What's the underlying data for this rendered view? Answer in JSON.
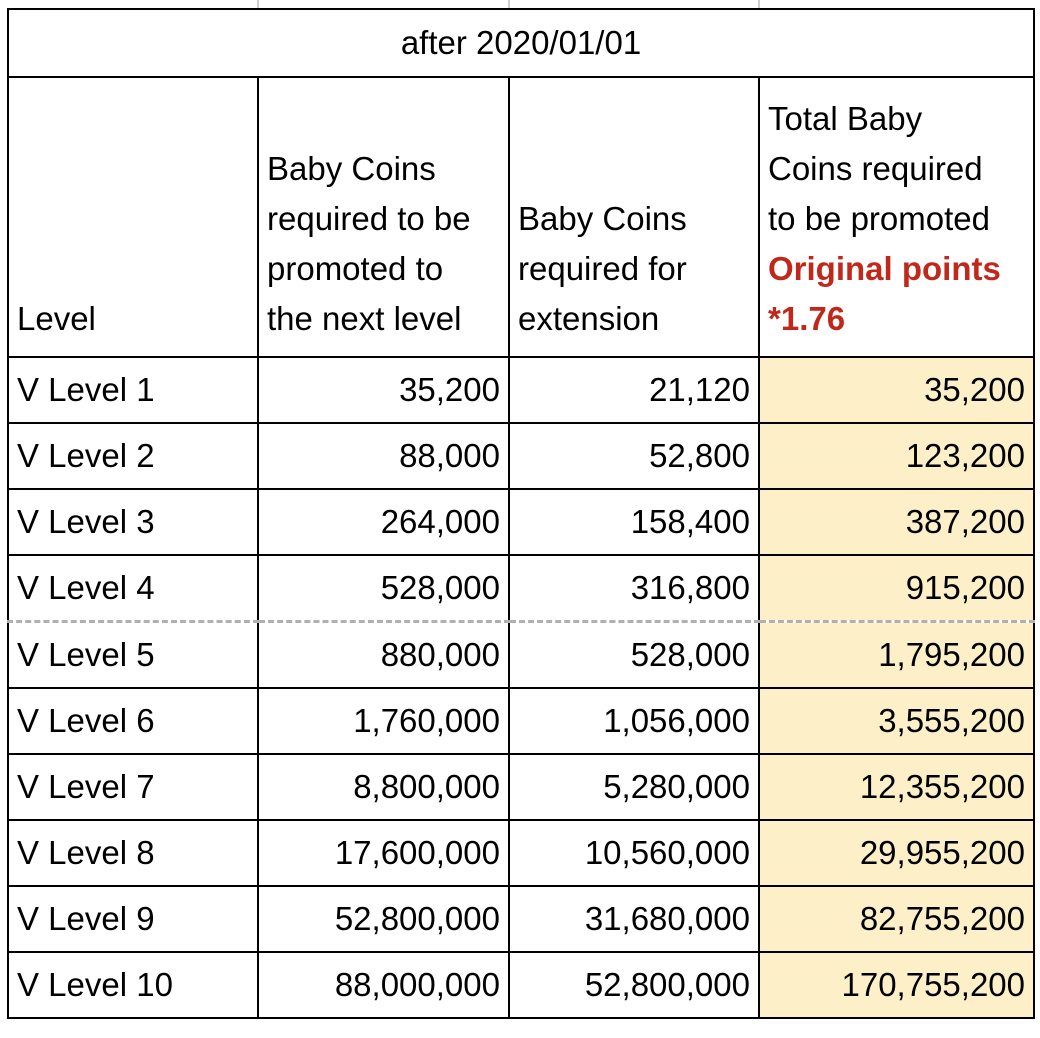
{
  "title": "after 2020/01/01",
  "headers": {
    "level": [
      "Level"
    ],
    "promote": [
      "Baby Coins",
      "required to be",
      "promoted to",
      "the next level"
    ],
    "extension": [
      "Baby Coins",
      "required for",
      "extension"
    ],
    "total": [
      "Total Baby",
      "Coins required",
      "to be promoted"
    ],
    "total_note": [
      "Original points",
      "*1.76"
    ]
  },
  "colors": {
    "highlight": "#fdf0c8",
    "note_red": "#c0281c"
  },
  "rows": [
    {
      "level": "V Level 1",
      "promote": "35,200",
      "extension": "21,120",
      "total": "35,200"
    },
    {
      "level": "V Level 2",
      "promote": "88,000",
      "extension": "52,800",
      "total": "123,200"
    },
    {
      "level": "V Level 3",
      "promote": "264,000",
      "extension": "158,400",
      "total": "387,200"
    },
    {
      "level": "V Level 4",
      "promote": "528,000",
      "extension": "316,800",
      "total": "915,200"
    },
    {
      "level": "V Level 5",
      "promote": "880,000",
      "extension": "528,000",
      "total": "1,795,200"
    },
    {
      "level": "V Level 6",
      "promote": "1,760,000",
      "extension": "1,056,000",
      "total": "3,555,200"
    },
    {
      "level": "V Level 7",
      "promote": "8,800,000",
      "extension": "5,280,000",
      "total": "12,355,200"
    },
    {
      "level": "V Level 8",
      "promote": "17,600,000",
      "extension": "10,560,000",
      "total": "29,955,200"
    },
    {
      "level": "V Level 9",
      "promote": "52,800,000",
      "extension": "31,680,000",
      "total": "82,755,200"
    },
    {
      "level": "V Level 10",
      "promote": "88,000,000",
      "extension": "52,800,000",
      "total": "170,755,200"
    }
  ]
}
